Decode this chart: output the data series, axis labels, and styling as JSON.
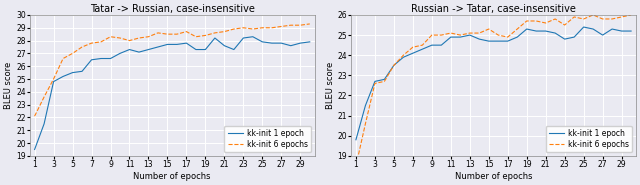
{
  "left_title": "Tatar -> Russian, case-insensitive",
  "right_title": "Russian -> Tatar, case-insensitive",
  "xlabel": "Number of epochs",
  "ylabel_left": "BLEU score",
  "ylabel_right": "BLEU score",
  "legend_1": "kk-init 1 epoch",
  "legend_2": "kk-init 6 epochs",
  "x": [
    1,
    2,
    3,
    4,
    5,
    6,
    7,
    8,
    9,
    10,
    11,
    12,
    13,
    14,
    15,
    16,
    17,
    18,
    19,
    20,
    21,
    22,
    23,
    24,
    25,
    26,
    27,
    28,
    29,
    30
  ],
  "left_line1": [
    19.5,
    21.5,
    24.8,
    25.2,
    25.5,
    25.6,
    26.5,
    26.6,
    26.6,
    27.0,
    27.3,
    27.1,
    27.3,
    27.5,
    27.7,
    27.7,
    27.8,
    27.3,
    27.3,
    28.2,
    27.6,
    27.3,
    28.2,
    28.3,
    27.9,
    27.8,
    27.8,
    27.6,
    27.8,
    27.9
  ],
  "left_line2": [
    22.1,
    23.6,
    25.0,
    26.6,
    27.0,
    27.5,
    27.8,
    27.9,
    28.3,
    28.2,
    28.0,
    28.2,
    28.3,
    28.6,
    28.5,
    28.5,
    28.7,
    28.3,
    28.4,
    28.6,
    28.7,
    28.9,
    29.0,
    28.9,
    29.0,
    29.0,
    29.1,
    29.2,
    29.2,
    29.3
  ],
  "right_line1": [
    19.8,
    21.5,
    22.7,
    22.8,
    23.5,
    23.9,
    24.1,
    24.3,
    24.5,
    24.5,
    24.9,
    24.9,
    25.0,
    24.8,
    24.7,
    24.7,
    24.7,
    24.9,
    25.3,
    25.2,
    25.2,
    25.1,
    24.8,
    24.9,
    25.4,
    25.3,
    25.0,
    25.3,
    25.2,
    25.2
  ],
  "right_line2": [
    18.5,
    20.6,
    22.6,
    22.7,
    23.5,
    24.0,
    24.4,
    24.5,
    25.0,
    25.0,
    25.1,
    25.0,
    25.1,
    25.1,
    25.3,
    25.0,
    24.9,
    25.3,
    25.7,
    25.7,
    25.6,
    25.8,
    25.5,
    25.9,
    25.8,
    26.0,
    25.8,
    25.8,
    25.9,
    26.0
  ],
  "left_ylim": [
    19,
    30
  ],
  "right_ylim": [
    19,
    26
  ],
  "left_yticks": [
    19,
    20,
    21,
    22,
    23,
    24,
    25,
    26,
    27,
    28,
    29,
    30
  ],
  "right_yticks": [
    19,
    20,
    21,
    22,
    23,
    24,
    25,
    26
  ],
  "xticks": [
    1,
    3,
    5,
    7,
    9,
    11,
    13,
    15,
    17,
    19,
    21,
    23,
    25,
    27,
    29
  ],
  "color_line1": "#1f77b4",
  "color_line2": "#ff7f0e",
  "bg_color": "#eaeaf2",
  "grid_color": "white",
  "fig_bg_color": "#eaeaf2",
  "title_fontsize": 7.0,
  "label_fontsize": 6.0,
  "tick_fontsize": 5.5,
  "legend_fontsize": 5.5,
  "linewidth": 0.8
}
